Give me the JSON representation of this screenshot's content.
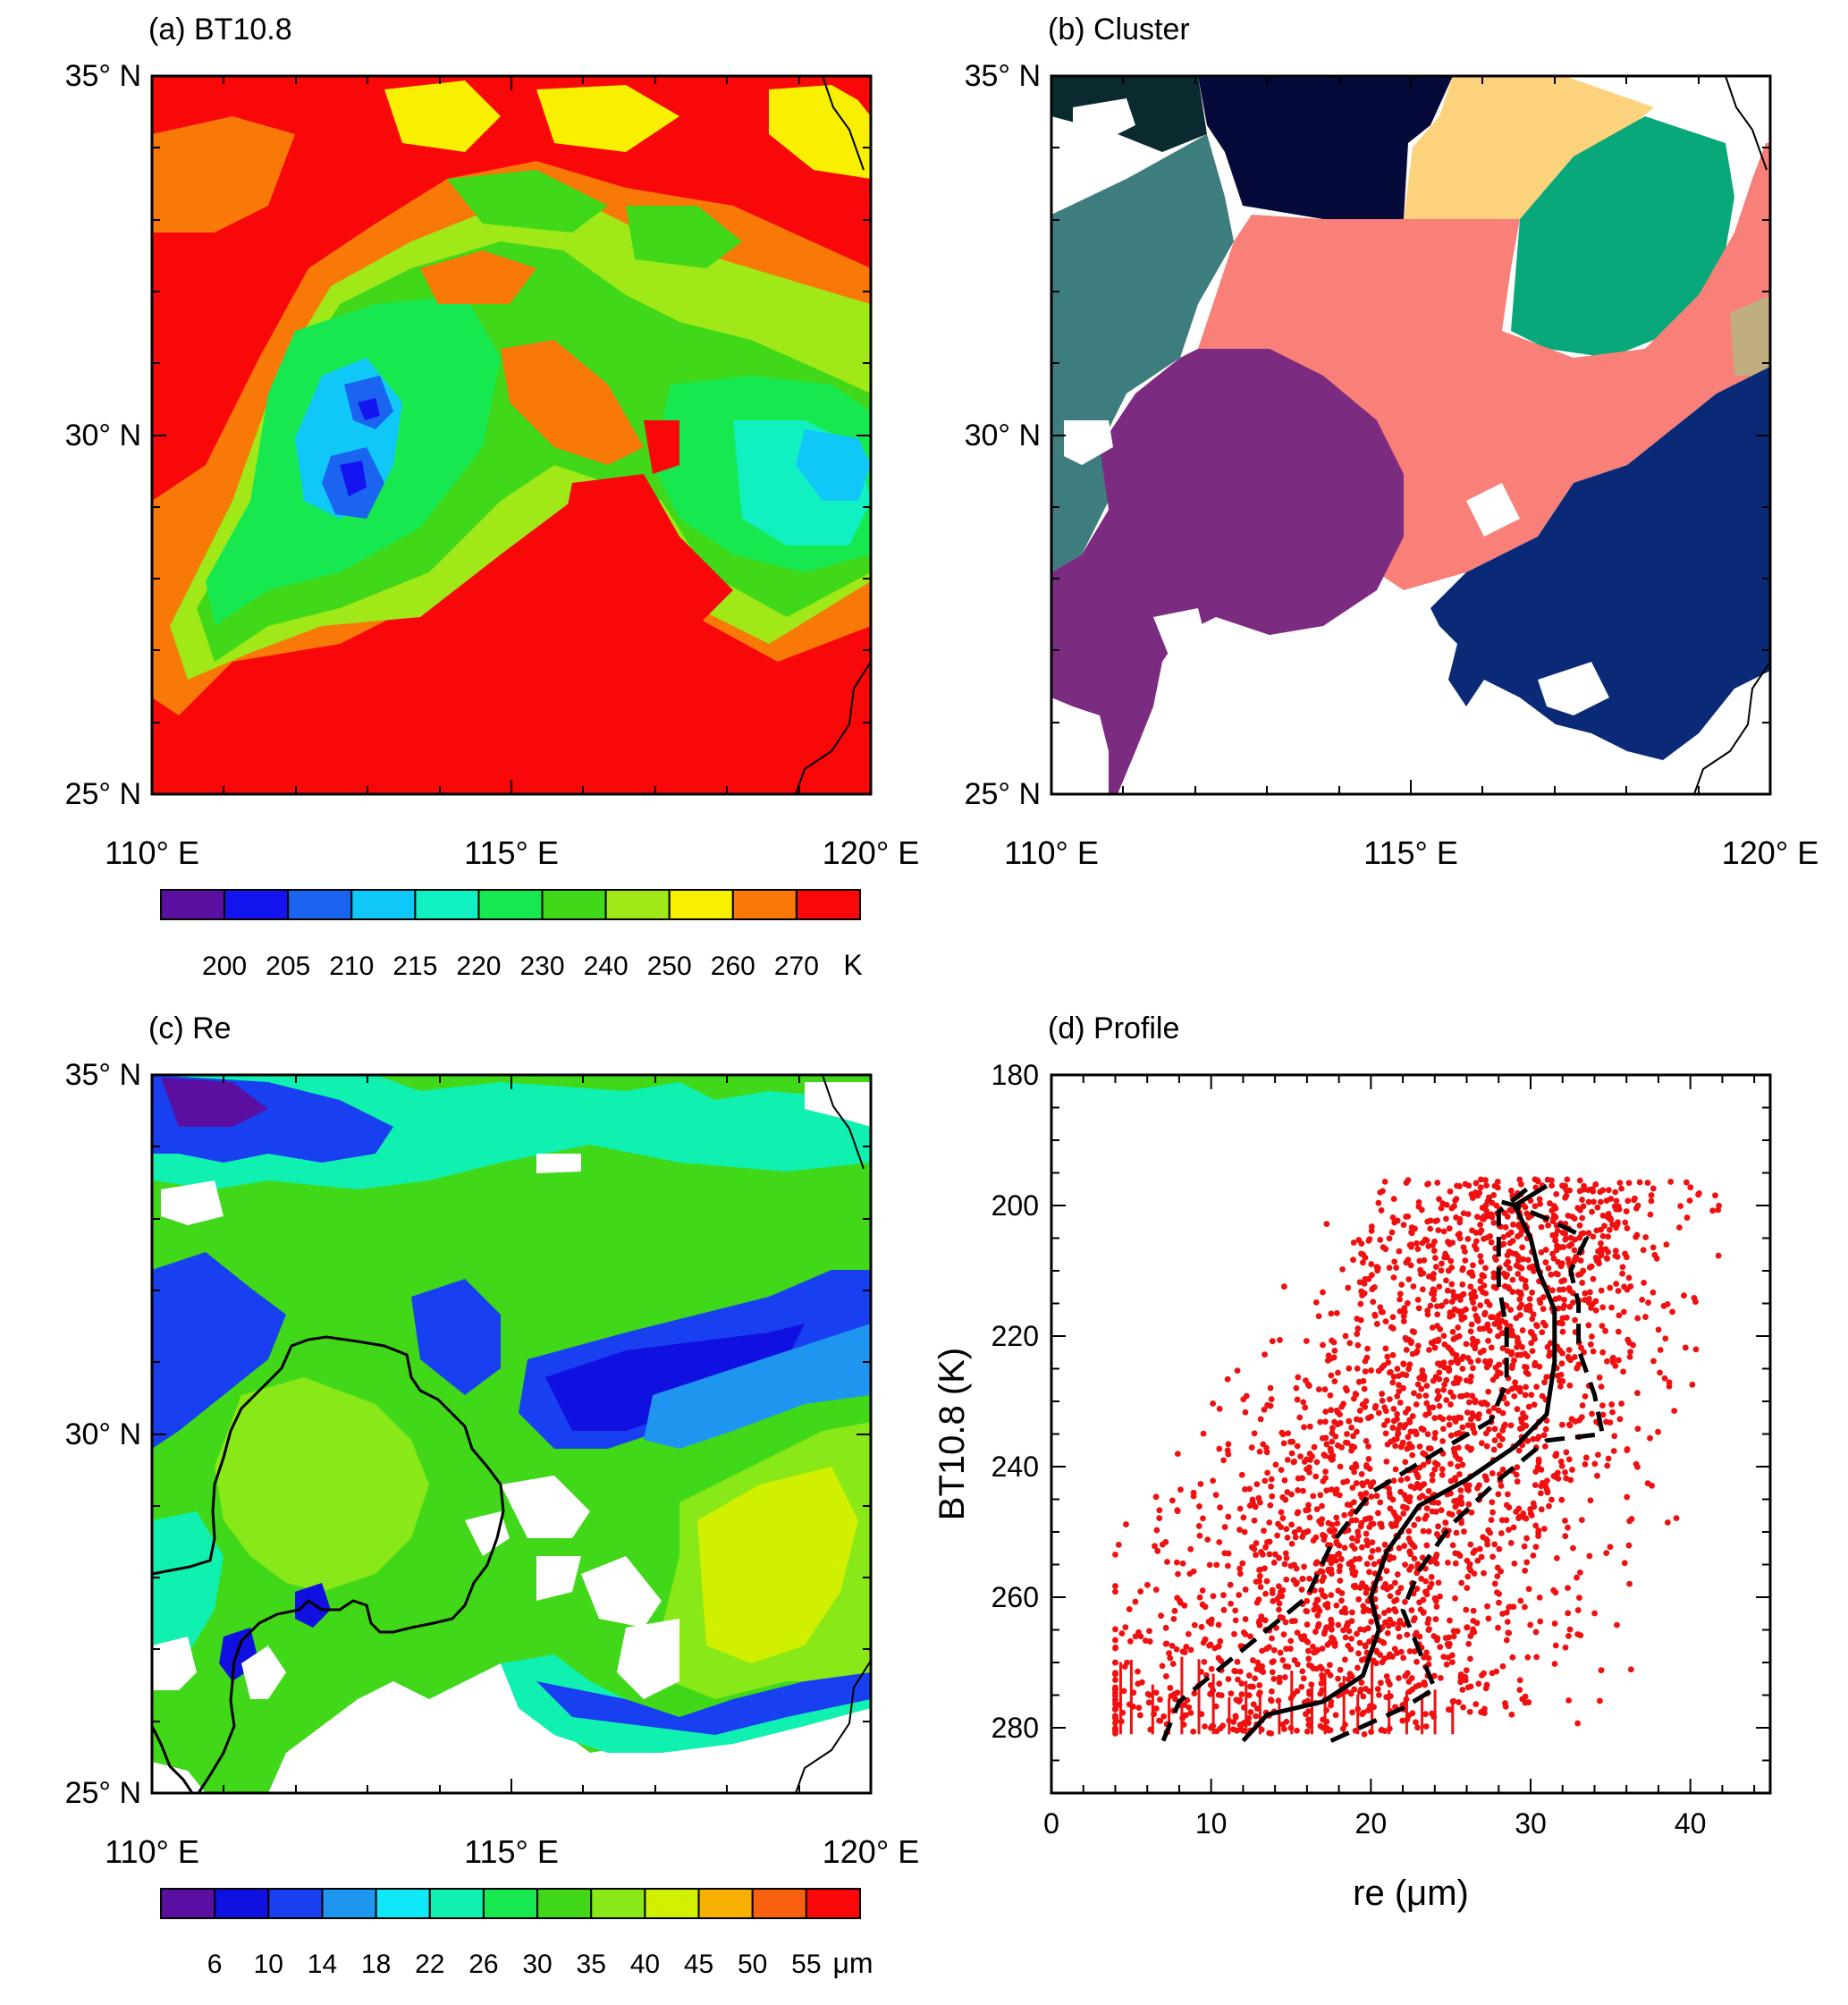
{
  "figure": {
    "panels": [
      {
        "id": "a",
        "title": "(a) BT10.8"
      },
      {
        "id": "b",
        "title": "(b) Cluster"
      },
      {
        "id": "c",
        "title": "(c) Re"
      },
      {
        "id": "d",
        "title": "(d) Profile"
      }
    ]
  },
  "map_axes": {
    "lat_ticks": [
      "35° N",
      "30° N",
      "25° N"
    ],
    "lon_ticks": [
      "110° E",
      "115° E",
      "120° E"
    ],
    "lat_range": [
      25,
      35
    ],
    "lon_range": [
      110,
      120
    ]
  },
  "colorbar_bt": {
    "colors": [
      "#5a0fa0",
      "#1414f0",
      "#1a64f0",
      "#10c8f8",
      "#10f0c0",
      "#18e850",
      "#40d818",
      "#a0e818",
      "#f8f000",
      "#f87808",
      "#f80808"
    ],
    "labels": [
      "200",
      "205",
      "210",
      "215",
      "220",
      "230",
      "240",
      "250",
      "260",
      "270"
    ],
    "unit": "K"
  },
  "colorbar_re": {
    "colors": [
      "#5a0fa0",
      "#1010e0",
      "#1840f0",
      "#1e96f0",
      "#10e8f8",
      "#10f0b0",
      "#18e850",
      "#40d818",
      "#88e818",
      "#d0f000",
      "#f8b000",
      "#f86010",
      "#f80808"
    ],
    "labels": [
      "6",
      "10",
      "14",
      "18",
      "22",
      "26",
      "30",
      "35",
      "40",
      "45",
      "50",
      "55"
    ],
    "unit": "μm"
  },
  "cluster_colors": {
    "darkgreen": "#0a2a30",
    "navy_top": "#050a3a",
    "tan": "#fcd27c",
    "teal": "#3e7d7d",
    "green": "#09a87a",
    "salmon": "#f88078",
    "purple": "#7c2c80",
    "navy": "#0a2a78",
    "olive": "#c0ae80"
  },
  "chart_data": {
    "type": "scatter",
    "title": "(d) Profile",
    "xlabel": "re (μm)",
    "ylabel": "BT10.8 (K)",
    "xlim": [
      0,
      45
    ],
    "ylim": [
      290,
      180
    ],
    "x_ticks": [
      "0",
      "10",
      "20",
      "30",
      "40"
    ],
    "y_ticks": [
      "180",
      "200",
      "220",
      "240",
      "260",
      "280"
    ],
    "x_tick_values": [
      0,
      10,
      20,
      30,
      40
    ],
    "y_tick_values": [
      180,
      200,
      220,
      240,
      260,
      280
    ],
    "scatter_color": "#f01010",
    "mean_profile": {
      "style": "solid",
      "points": [
        [
          12,
          282
        ],
        [
          13.5,
          278
        ],
        [
          17,
          276
        ],
        [
          19.5,
          272
        ],
        [
          20.5,
          265
        ],
        [
          20,
          260
        ],
        [
          21,
          253
        ],
        [
          23,
          246
        ],
        [
          26,
          242
        ],
        [
          29,
          237
        ],
        [
          31,
          232
        ],
        [
          31.5,
          224
        ],
        [
          31.5,
          216
        ],
        [
          30.5,
          210
        ],
        [
          30,
          205
        ],
        [
          29,
          200
        ],
        [
          31,
          197
        ]
      ]
    },
    "lower_bound": {
      "style": "dashed",
      "points": [
        [
          7,
          282
        ],
        [
          8,
          276
        ],
        [
          12,
          268
        ],
        [
          16,
          260
        ],
        [
          17.5,
          252
        ],
        [
          20,
          244
        ],
        [
          24,
          238
        ],
        [
          27.5,
          233
        ],
        [
          28.5,
          227
        ],
        [
          28.5,
          219
        ],
        [
          28,
          212
        ],
        [
          28,
          206
        ],
        [
          28,
          201
        ],
        [
          30,
          197
        ]
      ]
    },
    "upper_bound": {
      "style": "dashed",
      "points": [
        [
          17.5,
          282
        ],
        [
          22,
          277
        ],
        [
          24,
          274
        ],
        [
          23,
          268
        ],
        [
          22,
          262
        ],
        [
          23,
          256
        ],
        [
          25,
          249
        ],
        [
          28,
          242
        ],
        [
          31,
          236
        ],
        [
          34.5,
          235
        ],
        [
          34,
          229
        ],
        [
          33,
          222
        ],
        [
          33,
          215
        ],
        [
          32.5,
          210
        ],
        [
          33.5,
          205
        ],
        [
          31,
          202
        ],
        [
          29,
          200
        ],
        [
          27.5,
          199
        ]
      ]
    }
  }
}
